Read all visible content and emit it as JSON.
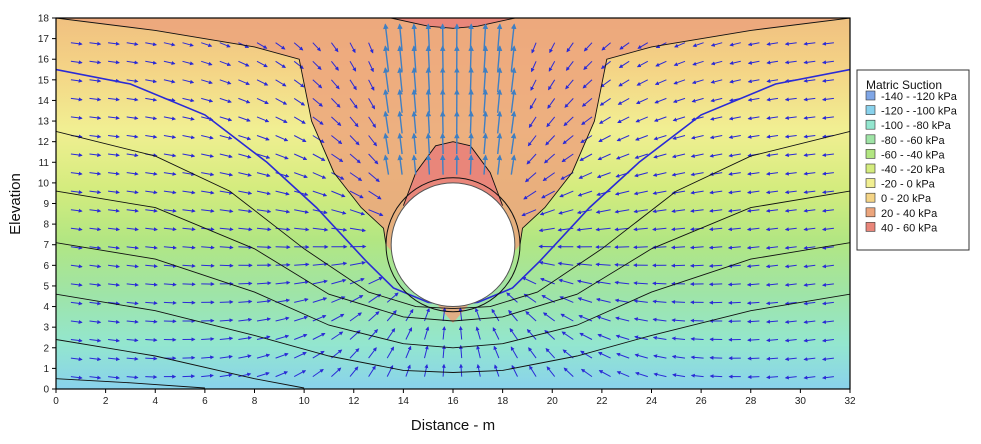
{
  "chart_data": {
    "type": "heatmap",
    "subtype": "contour-with-flow-vectors",
    "title": "",
    "xlabel": "Distance - m",
    "ylabel": "Elevation",
    "xlim": [
      0,
      32
    ],
    "ylim": [
      0,
      18
    ],
    "x_ticks": [
      "0",
      "2",
      "4",
      "6",
      "8",
      "10",
      "12",
      "14",
      "16",
      "18",
      "20",
      "22",
      "24",
      "26",
      "28",
      "30",
      "32"
    ],
    "y_ticks": [
      "0",
      "1",
      "2",
      "3",
      "4",
      "5",
      "6",
      "7",
      "8",
      "9",
      "10",
      "11",
      "12",
      "13",
      "14",
      "15",
      "16",
      "17",
      "18"
    ],
    "grid": false,
    "legend_placement": "right",
    "legend": {
      "title": "Matric Suction",
      "entries": [
        {
          "label": "-140 - -120 kPa",
          "color": "#7fa6e6"
        },
        {
          "label": "-120 - -100 kPa",
          "color": "#89d2ec"
        },
        {
          "label": "-100 - -80 kPa",
          "color": "#93e6cf"
        },
        {
          "label": "-80 - -60 kPa",
          "color": "#9fe4a6"
        },
        {
          "label": "-60 - -40 kPa",
          "color": "#b2e682"
        },
        {
          "label": "-40 - -20 kPa",
          "color": "#d4ec7e"
        },
        {
          "label": "-20 - 0 kPa",
          "color": "#f1ef92"
        },
        {
          "label": "0 - 20 kPa",
          "color": "#f4d486"
        },
        {
          "label": "20 - 40 kPa",
          "color": "#eca57c"
        },
        {
          "label": "40 - 60 kPa",
          "color": "#e9867a"
        }
      ]
    },
    "opening": {
      "center_x": 16,
      "center_y": 7,
      "radius": 3
    },
    "contour_lines": [
      [
        [
          0,
          0.5
        ],
        [
          3,
          0.3
        ],
        [
          6,
          0.05
        ]
      ],
      [
        [
          0,
          2.4
        ],
        [
          4,
          1.6
        ],
        [
          8,
          0.5
        ],
        [
          10,
          0.05
        ]
      ],
      [
        [
          0,
          4.6
        ],
        [
          4,
          3.8
        ],
        [
          8,
          2.6
        ],
        [
          11,
          1.6
        ],
        [
          14,
          0.9
        ],
        [
          16,
          0.8
        ],
        [
          18,
          0.9
        ],
        [
          21,
          1.6
        ],
        [
          24,
          2.6
        ],
        [
          28,
          3.8
        ],
        [
          32,
          4.6
        ]
      ],
      [
        [
          0,
          7.1
        ],
        [
          4,
          6.3
        ],
        [
          8,
          4.7
        ],
        [
          11,
          3.1
        ],
        [
          14,
          2.2
        ],
        [
          16,
          2.0
        ],
        [
          18,
          2.2
        ],
        [
          21,
          3.1
        ],
        [
          24,
          4.7
        ],
        [
          28,
          6.3
        ],
        [
          32,
          7.1
        ]
      ],
      [
        [
          0,
          9.6
        ],
        [
          4,
          8.8
        ],
        [
          8,
          6.8
        ],
        [
          11,
          4.6
        ],
        [
          14,
          3.5
        ],
        [
          16,
          3.3
        ],
        [
          18,
          3.5
        ],
        [
          21,
          4.6
        ],
        [
          24,
          6.8
        ],
        [
          28,
          8.8
        ],
        [
          32,
          9.6
        ]
      ],
      [
        [
          0,
          12.5
        ],
        [
          4,
          11.3
        ],
        [
          7,
          9.6
        ],
        [
          10,
          6.8
        ],
        [
          12.6,
          4.7
        ],
        [
          14.5,
          4.0
        ],
        [
          16,
          3.9
        ],
        [
          17.5,
          4.0
        ],
        [
          19.4,
          4.7
        ],
        [
          22,
          6.8
        ],
        [
          25,
          9.6
        ],
        [
          28,
          11.3
        ],
        [
          32,
          12.5
        ]
      ],
      [
        [
          0,
          15.5
        ],
        [
          3,
          14.8
        ],
        [
          6,
          13.3
        ],
        [
          8.5,
          11.0
        ],
        [
          10.5,
          8.8
        ],
        [
          12.5,
          6.2
        ],
        [
          13.6,
          4.9
        ],
        [
          15,
          4.2
        ],
        [
          16,
          4.1
        ],
        [
          17,
          4.2
        ],
        [
          18.4,
          4.9
        ],
        [
          19.5,
          6.2
        ],
        [
          21.5,
          8.8
        ],
        [
          23.5,
          11.0
        ],
        [
          26,
          13.3
        ],
        [
          29,
          14.8
        ],
        [
          32,
          15.5
        ]
      ],
      [
        [
          0,
          18
        ],
        [
          4,
          17.4
        ],
        [
          8,
          16.6
        ],
        [
          9.8,
          16.0
        ],
        [
          10.3,
          13.0
        ],
        [
          11.2,
          10.5
        ],
        [
          12.3,
          8.8
        ],
        [
          13.2,
          7.8
        ],
        [
          13.3,
          7.0
        ]
      ],
      [
        [
          18.7,
          7.0
        ],
        [
          18.8,
          7.8
        ],
        [
          19.7,
          8.8
        ],
        [
          20.8,
          10.5
        ],
        [
          21.7,
          13.0
        ],
        [
          22.2,
          16.0
        ],
        [
          24,
          16.6
        ],
        [
          28,
          17.4
        ],
        [
          32,
          18
        ]
      ],
      [
        [
          14.0,
          8.9
        ],
        [
          14.5,
          10.5
        ],
        [
          15.3,
          11.8
        ],
        [
          16,
          12.0
        ],
        [
          16.7,
          11.8
        ],
        [
          17.5,
          10.5
        ],
        [
          18.0,
          8.9
        ]
      ],
      [
        [
          13.5,
          18
        ],
        [
          15,
          17.6
        ],
        [
          16,
          17.5
        ],
        [
          17,
          17.6
        ],
        [
          18.5,
          18
        ]
      ]
    ]
  }
}
